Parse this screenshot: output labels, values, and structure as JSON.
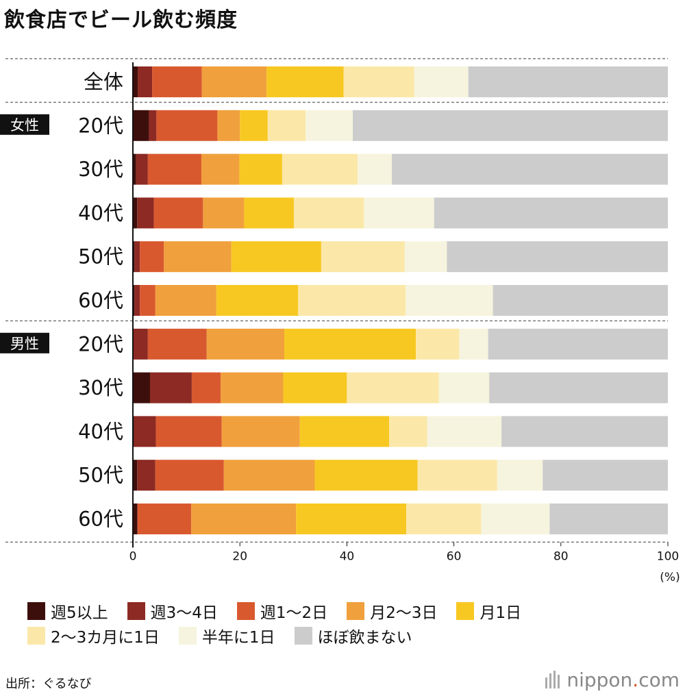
{
  "chart_data": {
    "type": "bar",
    "orientation": "horizontal",
    "stacked": true,
    "title": "飲食店でビール飲む頻度",
    "xlabel": "",
    "unit_label": "(%)",
    "xlim": [
      0,
      100
    ],
    "ticks": [
      0,
      20,
      40,
      60,
      80,
      100
    ],
    "groups": [
      {
        "label": "",
        "rows": [
          0
        ]
      },
      {
        "label": "女性",
        "rows": [
          1,
          2,
          3,
          4,
          5
        ]
      },
      {
        "label": "男性",
        "rows": [
          6,
          7,
          8,
          9,
          10
        ]
      }
    ],
    "categories": [
      "全体",
      "20代",
      "30代",
      "40代",
      "50代",
      "60代",
      "20代",
      "30代",
      "40代",
      "50代",
      "60代"
    ],
    "series": [
      {
        "name": "週5以上",
        "color": "#3d0f0c",
        "values": [
          0.9,
          3.0,
          0.6,
          0.8,
          0.3,
          0.3,
          0.1,
          3.2,
          0.2,
          0.8,
          0.8
        ]
      },
      {
        "name": "週3〜4日",
        "color": "#8c2a23",
        "values": [
          2.7,
          1.4,
          2.2,
          3.1,
          1.0,
          1.0,
          2.7,
          7.8,
          4.1,
          3.4,
          0.1
        ]
      },
      {
        "name": "週1〜2日",
        "color": "#d9592f",
        "values": [
          9.3,
          11.4,
          10.0,
          9.2,
          4.5,
          2.9,
          11.0,
          5.4,
          12.3,
          12.8,
          10.0
        ]
      },
      {
        "name": "月2〜3日",
        "color": "#f0a03c",
        "values": [
          12.1,
          4.2,
          7.1,
          7.7,
          12.6,
          11.4,
          14.5,
          11.7,
          14.6,
          17.0,
          19.6
        ]
      },
      {
        "name": "月1日",
        "color": "#f8c822",
        "values": [
          14.4,
          5.2,
          8.0,
          9.3,
          16.8,
          15.3,
          24.6,
          11.9,
          16.7,
          19.2,
          20.6
        ]
      },
      {
        "name": "2〜3カ月に1日",
        "color": "#fbe8a8",
        "values": [
          13.2,
          7.1,
          14.1,
          13.1,
          15.6,
          20.1,
          8.1,
          17.2,
          7.1,
          14.9,
          14.0
        ]
      },
      {
        "name": "半年に1日",
        "color": "#f6f4de",
        "values": [
          10.1,
          8.8,
          6.4,
          13.1,
          7.9,
          16.3,
          5.4,
          9.4,
          13.9,
          8.5,
          12.8
        ]
      },
      {
        "name": "ほぼ飲まない",
        "color": "#cccccc",
        "values": [
          37.3,
          58.9,
          51.6,
          43.7,
          41.3,
          32.7,
          33.6,
          33.4,
          31.1,
          23.4,
          22.1
        ]
      }
    ]
  },
  "source": "出所：ぐるなび",
  "brand": {
    "name": "nippon",
    "dot": ".",
    "tld": "com"
  }
}
